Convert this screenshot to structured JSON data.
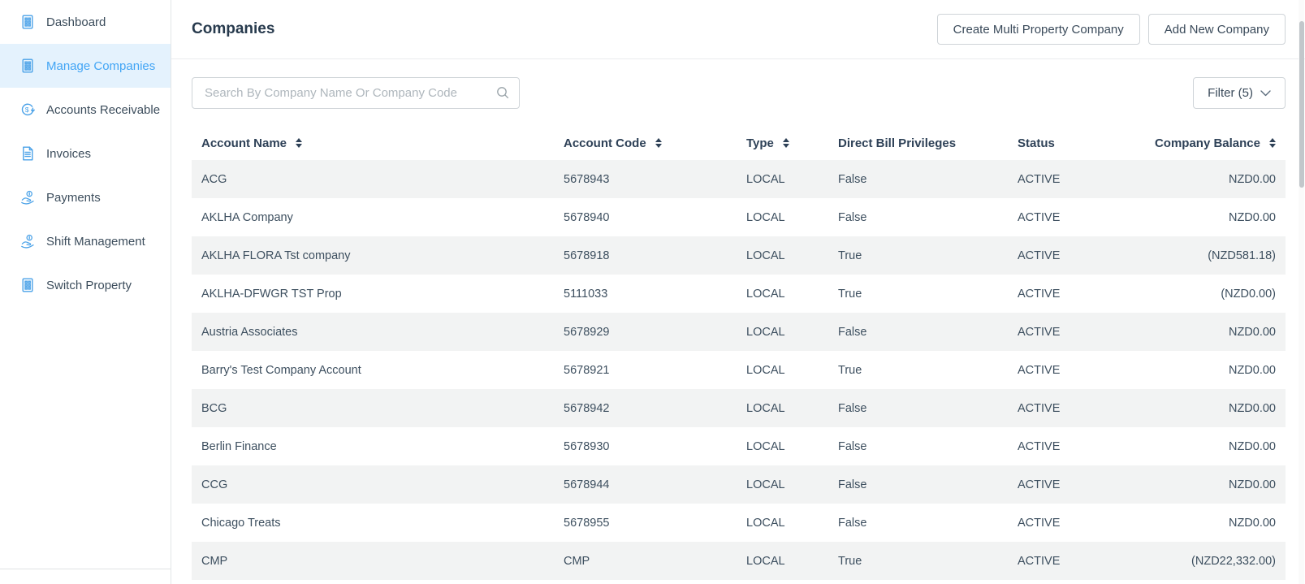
{
  "sidebar": {
    "items": [
      {
        "label": "Dashboard",
        "icon": "building-ledger-icon",
        "selected": false
      },
      {
        "label": "Manage Companies",
        "icon": "building-ledger-icon",
        "selected": true
      },
      {
        "label": "Accounts Receivable",
        "icon": "currency-cycle-icon",
        "selected": false
      },
      {
        "label": "Invoices",
        "icon": "invoice-document-icon",
        "selected": false
      },
      {
        "label": "Payments",
        "icon": "hand-coin-icon",
        "selected": false
      },
      {
        "label": "Shift Management",
        "icon": "hand-coin-icon",
        "selected": false
      },
      {
        "label": "Switch Property",
        "icon": "building-ledger-icon",
        "selected": false
      }
    ]
  },
  "header": {
    "title": "Companies",
    "create_multi_button": "Create Multi Property Company",
    "add_new_button": "Add New Company"
  },
  "toolbar": {
    "search_placeholder": "Search By Company Name Or Company Code",
    "search_value": "",
    "filter_label": "Filter (5)"
  },
  "table": {
    "columns": [
      {
        "label": "Account Name",
        "key": "account_name",
        "sortable": true,
        "align": "left"
      },
      {
        "label": "Account Code",
        "key": "account_code",
        "sortable": true,
        "align": "left"
      },
      {
        "label": "Type",
        "key": "type",
        "sortable": true,
        "align": "left"
      },
      {
        "label": "Direct Bill Privileges",
        "key": "direct_bill",
        "sortable": false,
        "align": "left"
      },
      {
        "label": "Status",
        "key": "status",
        "sortable": false,
        "align": "left"
      },
      {
        "label": "Company Balance",
        "key": "balance",
        "sortable": true,
        "align": "right"
      }
    ],
    "rows": [
      {
        "account_name": "ACG",
        "account_code": "5678943",
        "type": "LOCAL",
        "direct_bill": "False",
        "status": "ACTIVE",
        "balance": "NZD0.00"
      },
      {
        "account_name": "AKLHA Company",
        "account_code": "5678940",
        "type": "LOCAL",
        "direct_bill": "False",
        "status": "ACTIVE",
        "balance": "NZD0.00"
      },
      {
        "account_name": "AKLHA FLORA Tst company",
        "account_code": "5678918",
        "type": "LOCAL",
        "direct_bill": "True",
        "status": "ACTIVE",
        "balance": "(NZD581.18)"
      },
      {
        "account_name": "AKLHA-DFWGR TST Prop",
        "account_code": "5111033",
        "type": "LOCAL",
        "direct_bill": "True",
        "status": "ACTIVE",
        "balance": "(NZD0.00)"
      },
      {
        "account_name": "Austria Associates",
        "account_code": "5678929",
        "type": "LOCAL",
        "direct_bill": "False",
        "status": "ACTIVE",
        "balance": "NZD0.00"
      },
      {
        "account_name": "Barry's Test Company Account",
        "account_code": "5678921",
        "type": "LOCAL",
        "direct_bill": "True",
        "status": "ACTIVE",
        "balance": "NZD0.00"
      },
      {
        "account_name": "BCG",
        "account_code": "5678942",
        "type": "LOCAL",
        "direct_bill": "False",
        "status": "ACTIVE",
        "balance": "NZD0.00"
      },
      {
        "account_name": "Berlin Finance",
        "account_code": "5678930",
        "type": "LOCAL",
        "direct_bill": "False",
        "status": "ACTIVE",
        "balance": "NZD0.00"
      },
      {
        "account_name": "CCG",
        "account_code": "5678944",
        "type": "LOCAL",
        "direct_bill": "False",
        "status": "ACTIVE",
        "balance": "NZD0.00"
      },
      {
        "account_name": "Chicago Treats",
        "account_code": "5678955",
        "type": "LOCAL",
        "direct_bill": "False",
        "status": "ACTIVE",
        "balance": "NZD0.00"
      },
      {
        "account_name": "CMP",
        "account_code": "CMP",
        "type": "LOCAL",
        "direct_bill": "True",
        "status": "ACTIVE",
        "balance": "(NZD22,332.00)"
      }
    ]
  },
  "colors": {
    "accent_blue": "#42A5F5",
    "icon_blue": "#4BA2E8",
    "selected_item_bg": "#E4F2FD",
    "row_stripe": "#F2F3F3",
    "heading_navy": "#2E4157",
    "body_text": "#3D4F5F",
    "border": "#CFD4D8"
  }
}
